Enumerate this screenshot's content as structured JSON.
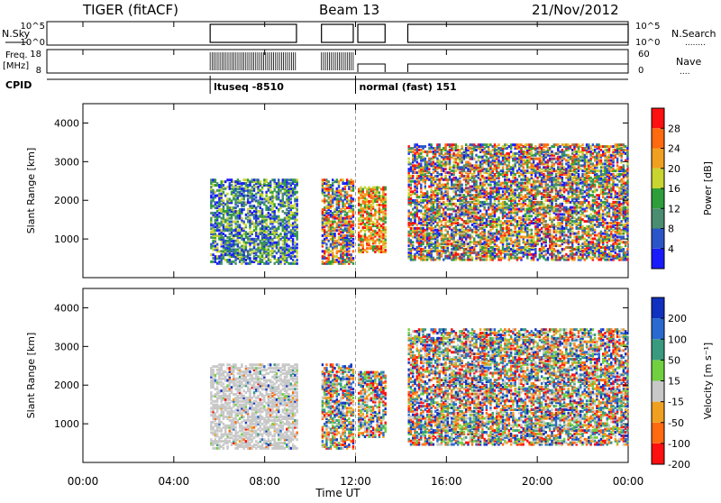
{
  "header": {
    "title": "TIGER (fitACF)",
    "beam": "Beam 13",
    "date": "21/Nov/2012"
  },
  "status_panels": {
    "nsky_label": "N.Sky",
    "nsearch_label": "N.Search",
    "sky_ticks": [
      "10^5",
      "10^0"
    ],
    "search_ticks": [
      "10^5",
      "10^0"
    ],
    "freq_label_1": "Freq.",
    "freq_label_2": "[MHz]",
    "freq_ticks": [
      "18",
      "8"
    ],
    "nave_label": "Nave",
    "nave_ticks": [
      "60",
      "0"
    ],
    "cpid_label": "CPID",
    "cpid_entries": [
      {
        "name": "ltuseq -8510",
        "start_hour": 5.6
      },
      {
        "name": "normal (fast) 151",
        "start_hour": 12.0
      }
    ]
  },
  "time_axis": {
    "label": "Time UT",
    "ticks": [
      "00:00",
      "04:00",
      "08:00",
      "12:00",
      "16:00",
      "20:00",
      "00:00"
    ],
    "range_hours": [
      0,
      24
    ]
  },
  "chart_data": [
    {
      "type": "heatmap",
      "name": "power",
      "ylabel": "Slant Range [km]",
      "ylim": [
        0,
        4500
      ],
      "yticks": [
        "1000",
        "2000",
        "3000",
        "4000"
      ],
      "colorbar_label": "Power [dB]",
      "colorbar_ticks": [
        "4",
        "8",
        "12",
        "16",
        "20",
        "24",
        "28"
      ],
      "colorbar_colors": [
        "#1a1aff",
        "#2a55c8",
        "#4a8d70",
        "#2e9e3a",
        "#c8d430",
        "#f0a020",
        "#ff6a10",
        "#ff1010"
      ],
      "segments": [
        {
          "start": 5.6,
          "end": 9.4,
          "range_low": 400,
          "range_high": 2600,
          "level": "low"
        },
        {
          "start": 10.5,
          "end": 11.9,
          "range_low": 400,
          "range_high": 2600,
          "level": "mixed"
        },
        {
          "start": 12.1,
          "end": 13.3,
          "range_low": 700,
          "range_high": 2400,
          "level": "high"
        },
        {
          "start": 14.3,
          "end": 24.0,
          "range_low": 500,
          "range_high": 3500,
          "level": "band"
        }
      ]
    },
    {
      "type": "heatmap",
      "name": "velocity",
      "ylabel": "Slant Range [km]",
      "ylim": [
        0,
        4500
      ],
      "yticks": [
        "1000",
        "2000",
        "3000",
        "4000"
      ],
      "colorbar_label": "Velocity [m s⁻¹]",
      "colorbar_ticks": [
        "200",
        "100",
        "50",
        "15",
        "-15",
        "-50",
        "-100",
        "-200"
      ],
      "colorbar_colors": [
        "#1030c0",
        "#2a6ad0",
        "#3a9a80",
        "#70d040",
        "#c8c8c8",
        "#f0a020",
        "#ff6a10",
        "#ff1010"
      ],
      "segments": [
        {
          "start": 5.6,
          "end": 9.4,
          "range_low": 400,
          "range_high": 2600,
          "level": "grey"
        },
        {
          "start": 10.5,
          "end": 11.9,
          "range_low": 400,
          "range_high": 2600,
          "level": "mixed"
        },
        {
          "start": 12.1,
          "end": 13.3,
          "range_low": 700,
          "range_high": 2400,
          "level": "mixed"
        },
        {
          "start": 14.3,
          "end": 24.0,
          "range_low": 500,
          "range_high": 3500,
          "level": "band"
        }
      ]
    }
  ]
}
